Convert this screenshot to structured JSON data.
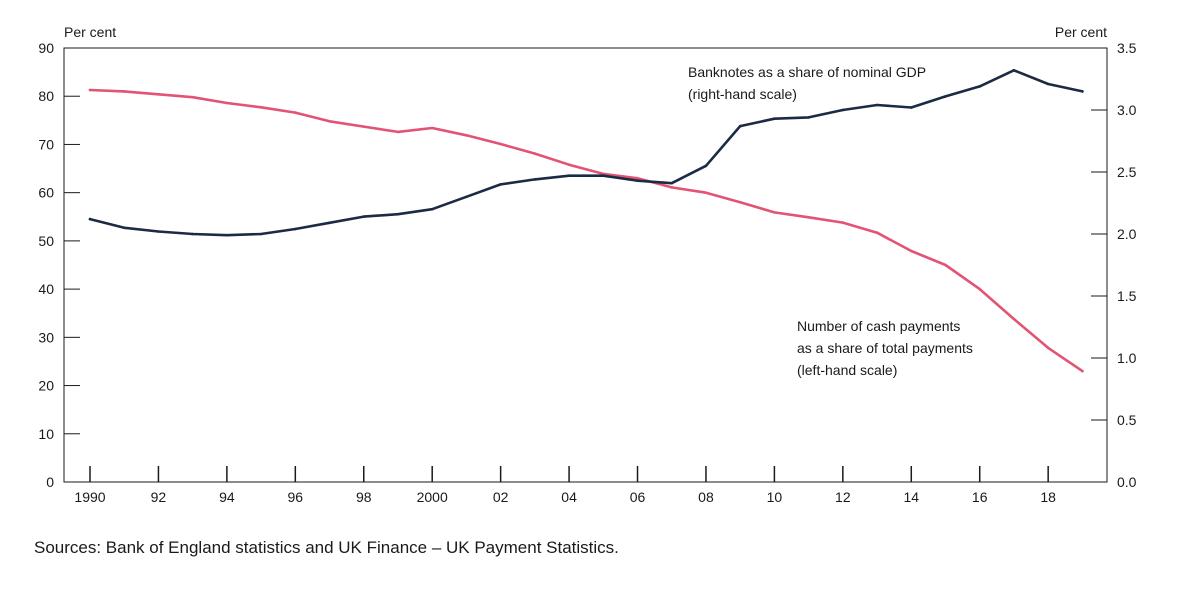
{
  "chart_data": {
    "type": "line",
    "title": "",
    "left_axis": {
      "label": "Per cent",
      "min": 0,
      "max": 90,
      "ticks": [
        0,
        10,
        20,
        30,
        40,
        50,
        60,
        70,
        80,
        90
      ]
    },
    "right_axis": {
      "label": "Per cent",
      "min": 0,
      "max": 3.5,
      "ticks": [
        "0.0",
        "0.5",
        "1.0",
        "1.5",
        "2.0",
        "2.5",
        "3.0",
        "3.5"
      ]
    },
    "x_axis": {
      "min": 1990,
      "max": 2019,
      "ticks": [
        {
          "year": 1990,
          "label": "1990"
        },
        {
          "year": 1992,
          "label": "92"
        },
        {
          "year": 1994,
          "label": "94"
        },
        {
          "year": 1996,
          "label": "96"
        },
        {
          "year": 1998,
          "label": "98"
        },
        {
          "year": 2000,
          "label": "2000"
        },
        {
          "year": 2002,
          "label": "02"
        },
        {
          "year": 2004,
          "label": "04"
        },
        {
          "year": 2006,
          "label": "06"
        },
        {
          "year": 2008,
          "label": "08"
        },
        {
          "year": 2010,
          "label": "10"
        },
        {
          "year": 2012,
          "label": "12"
        },
        {
          "year": 2014,
          "label": "14"
        },
        {
          "year": 2016,
          "label": "16"
        },
        {
          "year": 2018,
          "label": "18"
        }
      ]
    },
    "series": [
      {
        "name": "Number of cash payments as a share of total payments",
        "axis": "left",
        "color": "#e35374",
        "annotation": [
          "Number of cash payments",
          "as a share of total payments",
          "(left-hand scale)"
        ],
        "x": [
          1990,
          1991,
          1992,
          1993,
          1994,
          1995,
          1996,
          1997,
          1998,
          1999,
          2000,
          2001,
          2002,
          2003,
          2004,
          2005,
          2006,
          2007,
          2008,
          2009,
          2010,
          2011,
          2012,
          2013,
          2014,
          2015,
          2016,
          2017,
          2018,
          2019
        ],
        "values": [
          81.3,
          81.0,
          80.4,
          79.8,
          78.6,
          77.7,
          76.6,
          74.8,
          73.7,
          72.6,
          73.4,
          71.9,
          70.1,
          68.1,
          65.8,
          63.9,
          63.0,
          61.1,
          60.0,
          58.0,
          55.9,
          54.9,
          53.8,
          51.7,
          47.9,
          45.0,
          40.0,
          33.8,
          27.8,
          23.0
        ]
      },
      {
        "name": "Banknotes as a share of nominal GDP",
        "axis": "right",
        "color": "#1c2b45",
        "annotation": [
          "Banknotes as a share of nominal GDP",
          "(right-hand scale)"
        ],
        "x": [
          1990,
          1991,
          1992,
          1993,
          1994,
          1995,
          1996,
          1997,
          1998,
          1999,
          2000,
          2001,
          2002,
          2003,
          2004,
          2005,
          2006,
          2007,
          2008,
          2009,
          2010,
          2011,
          2012,
          2013,
          2014,
          2015,
          2016,
          2017,
          2018,
          2019
        ],
        "values": [
          2.12,
          2.05,
          2.02,
          2.0,
          1.99,
          2.0,
          2.04,
          2.09,
          2.14,
          2.16,
          2.2,
          2.3,
          2.4,
          2.44,
          2.47,
          2.47,
          2.43,
          2.41,
          2.55,
          2.87,
          2.93,
          2.94,
          3.0,
          3.04,
          3.02,
          3.11,
          3.19,
          3.32,
          3.21,
          3.15
        ]
      }
    ],
    "grid": false,
    "legend": "inline annotations"
  },
  "source": "Sources: Bank of England statistics and UK Finance – UK Payment Statistics."
}
